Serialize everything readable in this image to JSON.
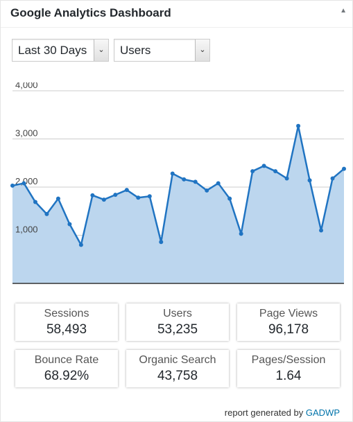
{
  "widget": {
    "title": "Google Analytics Dashboard",
    "toggle_icon": "collapse-arrow-icon"
  },
  "controls": {
    "range_value": "Last 30 Days",
    "metric_value": "Users",
    "dropdown_icon": "chevron-down-icon"
  },
  "chart_data": {
    "type": "area",
    "x": [
      1,
      2,
      3,
      4,
      5,
      6,
      7,
      8,
      9,
      10,
      11,
      12,
      13,
      14,
      15,
      16,
      17,
      18,
      19,
      20,
      21,
      22,
      23,
      24,
      25,
      26,
      27,
      28,
      29,
      30
    ],
    "values": [
      2030,
      2080,
      1690,
      1440,
      1760,
      1230,
      800,
      1830,
      1740,
      1840,
      1940,
      1780,
      1810,
      860,
      2280,
      2160,
      2110,
      1930,
      2080,
      1760,
      1030,
      2330,
      2440,
      2330,
      2180,
      3270,
      2140,
      1100,
      2180,
      2380
    ],
    "ylim": [
      0,
      4000
    ],
    "yticks": [
      "1,000",
      "2,000",
      "3,000",
      "4,000"
    ],
    "grid": true,
    "colors": {
      "line": "#2074c2",
      "fill": "#bcd6ee",
      "grid": "#cccccc"
    }
  },
  "stats": [
    {
      "label": "Sessions",
      "value": "58,493"
    },
    {
      "label": "Users",
      "value": "53,235"
    },
    {
      "label": "Page Views",
      "value": "96,178"
    },
    {
      "label": "Bounce Rate",
      "value": "68.92%"
    },
    {
      "label": "Organic Search",
      "value": "43,758"
    },
    {
      "label": "Pages/Session",
      "value": "1.64"
    }
  ],
  "footer": {
    "text": "report generated by",
    "link": "GADWP"
  }
}
